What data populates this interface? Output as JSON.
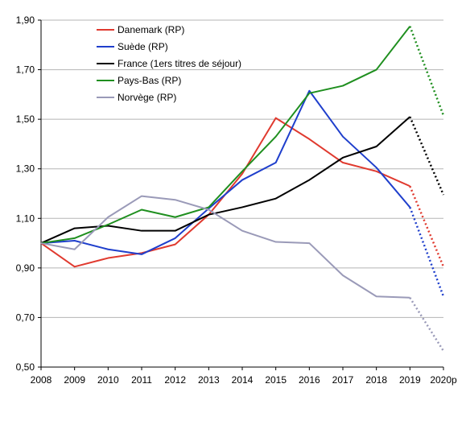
{
  "chart_data": {
    "type": "line",
    "title": "",
    "xlabel": "",
    "ylabel": "",
    "x": [
      "2008",
      "2009",
      "2010",
      "2011",
      "2012",
      "2013",
      "2014",
      "2015",
      "2016",
      "2017",
      "2018",
      "2019",
      "2020p"
    ],
    "ylim": [
      0.5,
      1.9
    ],
    "yticks": [
      "0,50",
      "0,70",
      "0,90",
      "1,10",
      "1,30",
      "1,50",
      "1,70",
      "1,90"
    ],
    "grid": "horizontal",
    "legend_position": "top-left",
    "projection_note": "last segment (2019–2020p) drawn dotted",
    "series": [
      {
        "name": "Danemark (RP)",
        "color": "#e03a2f",
        "values": [
          1.0,
          0.905,
          0.94,
          0.96,
          0.995,
          1.115,
          1.28,
          1.505,
          1.42,
          1.325,
          1.29,
          1.23,
          0.905
        ]
      },
      {
        "name": "Suède (RP)",
        "color": "#1f3fcc",
        "values": [
          1.0,
          1.01,
          0.975,
          0.955,
          1.02,
          1.14,
          1.255,
          1.325,
          1.615,
          1.43,
          1.305,
          1.145,
          0.785
        ]
      },
      {
        "name": "France (1ers titres de séjour)",
        "color": "#000000",
        "values": [
          1.0,
          1.06,
          1.07,
          1.05,
          1.05,
          1.115,
          1.145,
          1.18,
          1.255,
          1.345,
          1.39,
          1.51,
          1.195
        ]
      },
      {
        "name": "Pays-Bas (RP)",
        "color": "#1f8f1f",
        "values": [
          1.0,
          1.02,
          1.075,
          1.135,
          1.105,
          1.145,
          1.29,
          1.43,
          1.605,
          1.635,
          1.7,
          1.875,
          1.515
        ]
      },
      {
        "name": "Norvège (RP)",
        "color": "#9a9ab8",
        "values": [
          1.0,
          0.975,
          1.105,
          1.19,
          1.175,
          1.135,
          1.05,
          1.005,
          1.0,
          0.87,
          0.785,
          0.78,
          0.565
        ]
      }
    ]
  }
}
